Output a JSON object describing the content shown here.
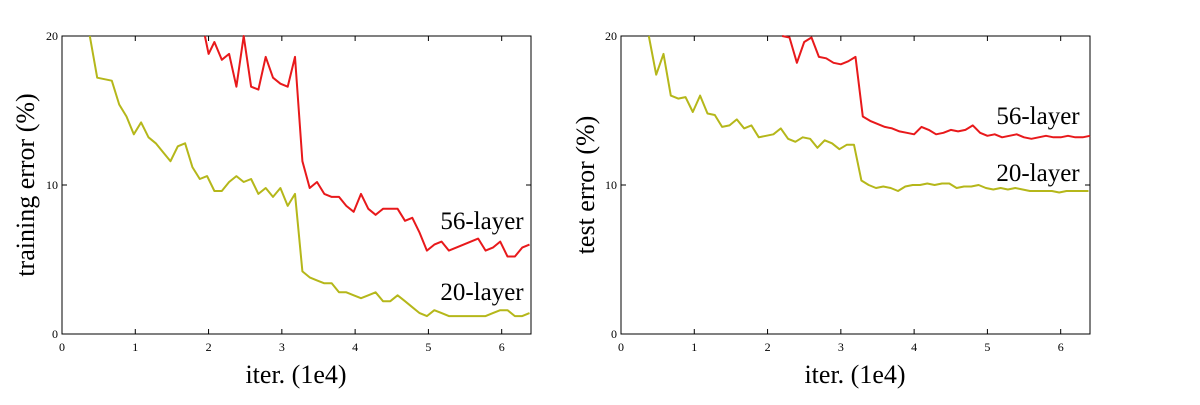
{
  "chart_data": [
    {
      "type": "line",
      "xlabel": "iter. (1e4)",
      "ylabel": "training error (%)",
      "xlim": [
        0,
        6.4
      ],
      "ylim": [
        0,
        20
      ],
      "xticks": [
        "0",
        "1",
        "2",
        "3",
        "4",
        "5",
        "6"
      ],
      "yticks": [
        "0",
        "10",
        "20"
      ],
      "grid": false,
      "series": [
        {
          "name": "56-layer",
          "color": "#e8191b",
          "x": [
            1.95,
            2.0,
            2.08,
            2.18,
            2.28,
            2.38,
            2.48,
            2.58,
            2.68,
            2.78,
            2.88,
            2.98,
            3.08,
            3.18,
            3.28,
            3.38,
            3.48,
            3.58,
            3.68,
            3.78,
            3.88,
            3.98,
            4.08,
            4.18,
            4.28,
            4.38,
            4.48,
            4.58,
            4.68,
            4.78,
            4.88,
            4.98,
            5.08,
            5.18,
            5.28,
            5.38,
            5.48,
            5.58,
            5.68,
            5.78,
            5.88,
            5.98,
            6.08,
            6.18,
            6.28,
            6.38
          ],
          "y": [
            20.0,
            18.8,
            19.6,
            18.4,
            18.8,
            16.6,
            20.0,
            16.6,
            16.4,
            18.6,
            17.2,
            16.8,
            16.6,
            18.6,
            11.6,
            9.8,
            10.2,
            9.4,
            9.2,
            9.2,
            8.6,
            8.2,
            9.4,
            8.4,
            8.0,
            8.4,
            8.4,
            8.4,
            7.6,
            7.8,
            6.8,
            5.6,
            6.0,
            6.2,
            5.6,
            5.8,
            6.0,
            6.2,
            6.4,
            5.6,
            5.8,
            6.2,
            5.2,
            5.2,
            5.8,
            6.0
          ]
        },
        {
          "name": "20-layer",
          "color": "#b5b71a",
          "x": [
            0.38,
            0.48,
            0.68,
            0.78,
            0.88,
            0.98,
            1.08,
            1.18,
            1.28,
            1.38,
            1.48,
            1.58,
            1.68,
            1.78,
            1.88,
            1.98,
            2.08,
            2.18,
            2.28,
            2.38,
            2.48,
            2.58,
            2.68,
            2.78,
            2.88,
            2.98,
            3.08,
            3.18,
            3.28,
            3.38,
            3.48,
            3.58,
            3.68,
            3.78,
            3.88,
            3.98,
            4.08,
            4.18,
            4.28,
            4.38,
            4.48,
            4.58,
            4.68,
            4.78,
            4.88,
            4.98,
            5.08,
            5.18,
            5.28,
            5.38,
            5.48,
            5.58,
            5.68,
            5.78,
            5.88,
            5.98,
            6.08,
            6.18,
            6.28,
            6.38
          ],
          "y": [
            20.0,
            17.2,
            17.0,
            15.4,
            14.6,
            13.4,
            14.2,
            13.2,
            12.8,
            12.2,
            11.6,
            12.6,
            12.8,
            11.2,
            10.4,
            10.6,
            9.6,
            9.6,
            10.2,
            10.6,
            10.2,
            10.4,
            9.4,
            9.8,
            9.2,
            9.8,
            8.6,
            9.4,
            4.2,
            3.8,
            3.6,
            3.4,
            3.4,
            2.8,
            2.8,
            2.6,
            2.4,
            2.6,
            2.8,
            2.2,
            2.2,
            2.6,
            2.2,
            1.8,
            1.4,
            1.2,
            1.6,
            1.4,
            1.2,
            1.2,
            1.2,
            1.2,
            1.2,
            1.2,
            1.4,
            1.6,
            1.6,
            1.2,
            1.2,
            1.4
          ]
        }
      ]
    },
    {
      "type": "line",
      "xlabel": "iter. (1e4)",
      "ylabel": "test error (%)",
      "xlim": [
        0,
        6.4
      ],
      "ylim": [
        0,
        20
      ],
      "xticks": [
        "0",
        "1",
        "2",
        "3",
        "4",
        "5",
        "6"
      ],
      "yticks": [
        "0",
        "10",
        "20"
      ],
      "grid": false,
      "series": [
        {
          "name": "56-layer",
          "color": "#e8191b",
          "x": [
            2.2,
            2.3,
            2.4,
            2.5,
            2.6,
            2.7,
            2.8,
            2.9,
            3.0,
            3.1,
            3.2,
            3.3,
            3.4,
            3.5,
            3.6,
            3.7,
            3.8,
            3.9,
            4.0,
            4.1,
            4.2,
            4.3,
            4.4,
            4.5,
            4.6,
            4.7,
            4.8,
            4.9,
            5.0,
            5.1,
            5.2,
            5.3,
            5.4,
            5.5,
            5.6,
            5.7,
            5.8,
            5.9,
            6.0,
            6.1,
            6.2,
            6.3,
            6.4
          ],
          "y": [
            20.0,
            19.9,
            18.2,
            19.6,
            19.9,
            18.6,
            18.5,
            18.2,
            18.1,
            18.3,
            18.6,
            14.6,
            14.3,
            14.1,
            13.9,
            13.8,
            13.6,
            13.5,
            13.4,
            13.9,
            13.7,
            13.4,
            13.5,
            13.7,
            13.6,
            13.7,
            14.0,
            13.5,
            13.3,
            13.4,
            13.2,
            13.3,
            13.4,
            13.2,
            13.1,
            13.2,
            13.3,
            13.2,
            13.2,
            13.3,
            13.2,
            13.2,
            13.3
          ]
        },
        {
          "name": "20-layer",
          "color": "#b5b71a",
          "x": [
            0.38,
            0.48,
            0.58,
            0.68,
            0.78,
            0.88,
            0.98,
            1.08,
            1.18,
            1.28,
            1.38,
            1.48,
            1.58,
            1.68,
            1.78,
            1.88,
            1.98,
            2.08,
            2.18,
            2.28,
            2.38,
            2.48,
            2.58,
            2.68,
            2.78,
            2.88,
            2.98,
            3.08,
            3.18,
            3.28,
            3.38,
            3.48,
            3.58,
            3.68,
            3.78,
            3.88,
            3.98,
            4.08,
            4.18,
            4.28,
            4.38,
            4.48,
            4.58,
            4.68,
            4.78,
            4.88,
            4.98,
            5.08,
            5.18,
            5.28,
            5.38,
            5.48,
            5.58,
            5.68,
            5.78,
            5.88,
            5.98,
            6.08,
            6.18,
            6.28,
            6.38
          ],
          "y": [
            20.0,
            17.4,
            18.8,
            16.0,
            15.8,
            15.9,
            14.9,
            16.0,
            14.8,
            14.7,
            13.9,
            14.0,
            14.4,
            13.8,
            14.0,
            13.2,
            13.3,
            13.4,
            13.8,
            13.1,
            12.9,
            13.2,
            13.1,
            12.5,
            13.0,
            12.8,
            12.4,
            12.7,
            12.7,
            10.3,
            10.0,
            9.8,
            9.9,
            9.8,
            9.6,
            9.9,
            10.0,
            10.0,
            10.1,
            10.0,
            10.1,
            10.1,
            9.8,
            9.9,
            9.9,
            10.0,
            9.8,
            9.7,
            9.8,
            9.7,
            9.8,
            9.7,
            9.6,
            9.6,
            9.6,
            9.6,
            9.5,
            9.6,
            9.6,
            9.6,
            9.6
          ]
        }
      ]
    }
  ]
}
